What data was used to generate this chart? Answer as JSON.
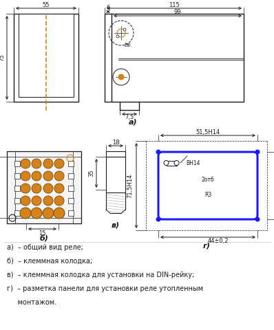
{
  "bg_color": "#ffffff",
  "line_color": "#1a1a1a",
  "orange_color": "#d4821a",
  "blue_color": "#1a1aff",
  "gray_color": "#cccccc",
  "font_size_dim": 6.0,
  "font_size_label": 7.5,
  "font_size_legend": 7.0,
  "legend_lines": [
    "а)  – общий вид реле;",
    "б)  – клеммная колодка;",
    "в)  – клеммная колодка для установки на DIN-рейку;",
    "г)  – разметка панели для установки реле утопленным",
    "     монтажом."
  ]
}
